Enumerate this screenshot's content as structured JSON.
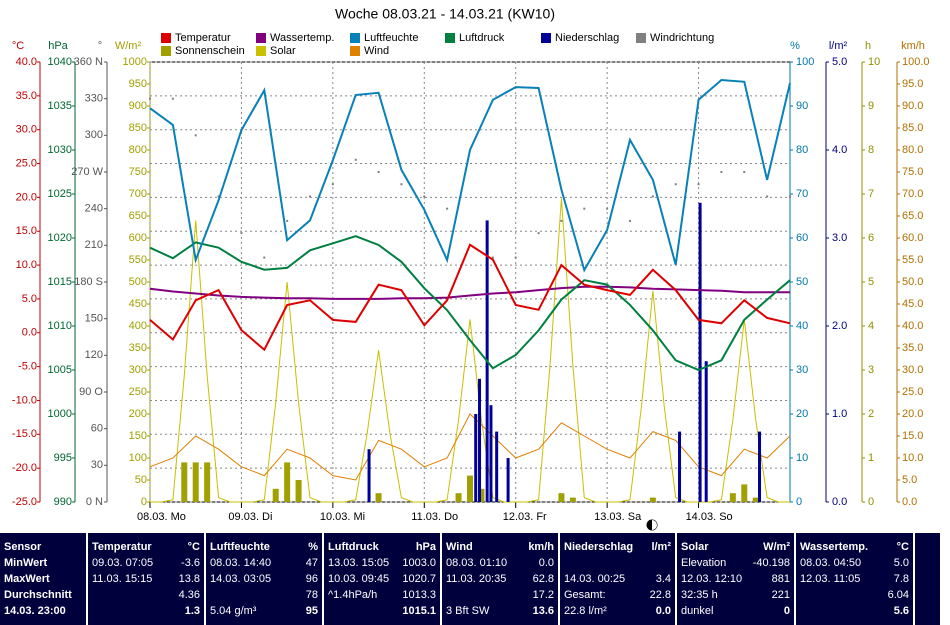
{
  "chart_data": {
    "type": "line",
    "title": "Woche 08.03.21 - 14.03.21 (KW10)",
    "xlim": [
      0,
      168
    ],
    "xticks": [
      {
        "value": 0,
        "label": "08.03. Mo"
      },
      {
        "value": 24,
        "label": "09.03. Di"
      },
      {
        "value": 48,
        "label": "10.03. Mi"
      },
      {
        "value": 72,
        "label": "11.03. Do"
      },
      {
        "value": 96,
        "label": "12.03. Fr"
      },
      {
        "value": 120,
        "label": "13.03. Sa"
      },
      {
        "value": 144,
        "label": "14.03. So"
      }
    ],
    "grid": true,
    "x": [
      0,
      6,
      12,
      18,
      24,
      30,
      36,
      42,
      48,
      54,
      60,
      66,
      72,
      78,
      84,
      90,
      96,
      102,
      108,
      114,
      120,
      126,
      132,
      138,
      144,
      150,
      156,
      162,
      168
    ],
    "axes": [
      {
        "unit": "°C",
        "color": "#c00000",
        "side": "left",
        "lim": [
          -25,
          40
        ],
        "ticks": [
          {
            "value": 40,
            "label": "40.0"
          },
          {
            "value": 35,
            "label": "35.0"
          },
          {
            "value": 30,
            "label": "30.0"
          },
          {
            "value": 25,
            "label": "25.0"
          },
          {
            "value": 20,
            "label": "20.0"
          },
          {
            "value": 15,
            "label": "15.0"
          },
          {
            "value": 10,
            "label": "10.0"
          },
          {
            "value": 5,
            "label": "5.0"
          },
          {
            "value": 0,
            "label": "0.0"
          },
          {
            "value": -5,
            "label": "-5.0"
          },
          {
            "value": -10,
            "label": "-10.0"
          },
          {
            "value": -15,
            "label": "-15.0"
          },
          {
            "value": -20,
            "label": "-20.0"
          },
          {
            "value": -25,
            "label": "-25.0"
          }
        ]
      },
      {
        "unit": "hPa",
        "color": "#006633",
        "side": "left",
        "lim": [
          990,
          1040
        ],
        "ticks": [
          1040,
          1035,
          1030,
          1025,
          1020,
          1015,
          1010,
          1005,
          1000,
          995,
          990
        ]
      },
      {
        "unit": "°",
        "color": "#555555",
        "side": "left",
        "lim": [
          0,
          360
        ],
        "ticks": [
          {
            "value": 360,
            "label": "360 N"
          },
          330,
          300,
          {
            "value": 270,
            "label": "270 W"
          },
          240,
          210,
          {
            "value": 180,
            "label": "180 S"
          },
          150,
          120,
          {
            "value": 90,
            "label": "90 O"
          },
          60,
          30,
          {
            "value": 0,
            "label": "0 N"
          }
        ]
      },
      {
        "unit": "W/m²",
        "color": "#a0a000",
        "side": "left",
        "lim": [
          0,
          1000
        ],
        "ticks": [
          1000,
          950,
          900,
          850,
          800,
          750,
          700,
          650,
          600,
          550,
          500,
          450,
          400,
          350,
          300,
          250,
          200,
          150,
          100,
          50,
          0
        ]
      },
      {
        "unit": "%",
        "color": "#0077aa",
        "side": "right",
        "lim": [
          0,
          100
        ],
        "ticks": [
          100,
          90,
          80,
          70,
          60,
          50,
          40,
          30,
          20,
          10,
          0
        ]
      },
      {
        "unit": "l/m²",
        "color": "#000080",
        "side": "right",
        "lim": [
          0,
          5
        ],
        "ticks": [
          {
            "value": 5,
            "label": "5.0"
          },
          {
            "value": 4,
            "label": "4.0"
          },
          {
            "value": 3,
            "label": "3.0"
          },
          {
            "value": 2,
            "label": "2.0"
          },
          {
            "value": 1,
            "label": "1.0"
          },
          {
            "value": 0,
            "label": "0.0"
          }
        ]
      },
      {
        "unit": "h",
        "color": "#909000",
        "side": "right",
        "lim": [
          0,
          10
        ],
        "ticks": [
          10,
          9,
          8,
          7,
          6,
          5,
          4,
          3,
          2,
          1,
          0
        ]
      },
      {
        "unit": "km/h",
        "color": "#b07000",
        "side": "right",
        "lim": [
          0,
          100
        ],
        "ticks": [
          {
            "value": 100,
            "label": "100.0"
          },
          {
            "value": 95,
            "label": "95.0"
          },
          {
            "value": 90,
            "label": "90.0"
          },
          {
            "value": 85,
            "label": "85.0"
          },
          {
            "value": 80,
            "label": "80.0"
          },
          {
            "value": 75,
            "label": "75.0"
          },
          {
            "value": 70,
            "label": "70.0"
          },
          {
            "value": 65,
            "label": "65.0"
          },
          {
            "value": 60,
            "label": "60.0"
          },
          {
            "value": 55,
            "label": "55.0"
          },
          {
            "value": 50,
            "label": "50.0"
          },
          {
            "value": 45,
            "label": "45.0"
          },
          {
            "value": 40,
            "label": "40.0"
          },
          {
            "value": 35,
            "label": "35.0"
          },
          {
            "value": 30,
            "label": "30.0"
          },
          {
            "value": 25,
            "label": "25.0"
          },
          {
            "value": 20,
            "label": "20.0"
          },
          {
            "value": 15,
            "label": "15.0"
          },
          {
            "value": 10,
            "label": "10.0"
          },
          {
            "value": 5,
            "label": "5.0"
          },
          {
            "value": 0,
            "label": "0.0"
          }
        ]
      }
    ],
    "series": [
      {
        "name": "Temperatur",
        "color": "#dd0000",
        "axis": 0,
        "kind": "line",
        "values": [
          1.9,
          -1.0,
          4.8,
          6.3,
          0.4,
          -2.5,
          4.1,
          4.8,
          1.9,
          1.6,
          7.1,
          6.3,
          1.1,
          4.8,
          13.0,
          10.8,
          4.1,
          3.4,
          10.0,
          7.1,
          6.3,
          5.6,
          9.3,
          6.3,
          1.9,
          1.4,
          4.8,
          2.2,
          1.4
        ]
      },
      {
        "name": "Wassertemp.",
        "color": "#800080",
        "axis": 0,
        "kind": "line",
        "values": [
          6.5,
          6.1,
          5.8,
          5.5,
          5.3,
          5.2,
          5.1,
          5.1,
          5.0,
          5.0,
          5.0,
          5.1,
          5.1,
          5.2,
          5.5,
          5.8,
          6.0,
          6.3,
          6.6,
          6.8,
          6.8,
          6.7,
          6.5,
          6.4,
          6.3,
          6.2,
          6.0,
          6.0,
          6.0
        ]
      },
      {
        "name": "Luftfeuchte",
        "color": "#0880b8",
        "axis": 4,
        "kind": "line",
        "values": [
          89.5,
          85.7,
          55,
          68.6,
          84.5,
          93.6,
          59.5,
          64,
          77.7,
          92.5,
          93,
          75.5,
          66.4,
          55,
          80,
          91.4,
          94.3,
          94.1,
          71,
          52.7,
          61.8,
          82.3,
          73.2,
          53.9,
          91.4,
          95.9,
          95.5,
          73.2,
          95.2
        ]
      },
      {
        "name": "Luftdruck",
        "color": "#008040",
        "axis": 1,
        "kind": "line",
        "values": [
          1018.9,
          1017.7,
          1019.5,
          1018.9,
          1017.3,
          1016.4,
          1016.6,
          1018.6,
          1019.4,
          1020.2,
          1019.2,
          1017.3,
          1014.3,
          1011.8,
          1008.4,
          1005.2,
          1006.7,
          1009.5,
          1013.0,
          1015.2,
          1014.7,
          1012.4,
          1009.5,
          1006.1,
          1005.0,
          1006.1,
          1010.7,
          1013.0,
          1015.2
        ]
      },
      {
        "name": "Niederschlag",
        "color": "#000099",
        "axis": 5,
        "kind": "bar",
        "x": [
          57.5,
          85.5,
          86.5,
          88.5,
          89.5,
          91,
          94,
          139,
          144.4,
          146,
          160
        ],
        "values": [
          0.6,
          1.0,
          1.4,
          3.2,
          1.1,
          0.8,
          0.5,
          0.8,
          3.4,
          1.6,
          0.8
        ]
      },
      {
        "name": "Windrichtung",
        "color": "#808080",
        "axis": 2,
        "kind": "dots",
        "values": [
          330,
          330,
          300,
          250,
          220,
          200,
          230,
          250,
          260,
          280,
          270,
          260,
          250,
          240,
          210,
          200,
          200,
          220,
          230,
          240,
          240,
          230,
          250,
          260,
          260,
          270,
          270,
          250,
          250
        ]
      },
      {
        "name": "Sonnenschein",
        "color": "#a0a000",
        "axis": 6,
        "kind": "bar",
        "x": [
          0,
          3,
          6,
          9,
          12,
          15,
          18,
          21,
          24,
          27,
          30,
          33,
          36,
          39,
          42,
          45,
          48,
          51,
          54,
          57,
          60,
          63,
          66,
          69,
          72,
          75,
          78,
          81,
          84,
          87,
          90,
          93,
          96,
          99,
          102,
          105,
          108,
          111,
          114,
          117,
          120,
          123,
          126,
          129,
          132,
          135,
          138,
          141,
          144,
          147,
          150,
          153,
          156,
          159,
          162,
          165,
          168
        ],
        "values": [
          0,
          0,
          0,
          0.9,
          0.9,
          0.9,
          0,
          0,
          0,
          0,
          0,
          0.3,
          0.9,
          0.5,
          0,
          0,
          0,
          0,
          0,
          0,
          0.2,
          0,
          0,
          0,
          0,
          0,
          0,
          0.2,
          0.6,
          0.3,
          0,
          0,
          0,
          0,
          0,
          0,
          0.2,
          0.1,
          0,
          0,
          0,
          0,
          0,
          0,
          0.1,
          0,
          0,
          0,
          0,
          0,
          0,
          0.2,
          0.4,
          0.1,
          0,
          0,
          0
        ]
      },
      {
        "name": "Solar",
        "color": "#c8c000",
        "axis": 3,
        "kind": "line",
        "x": [
          0,
          3,
          6,
          9,
          12,
          15,
          18,
          21,
          24,
          27,
          30,
          33,
          36,
          39,
          42,
          45,
          48,
          51,
          54,
          57,
          60,
          63,
          66,
          69,
          72,
          75,
          78,
          81,
          84,
          87,
          90,
          93,
          96,
          99,
          102,
          105,
          108,
          111,
          114,
          117,
          120,
          123,
          126,
          129,
          132,
          135,
          138,
          141,
          144,
          147,
          150,
          153,
          156,
          159,
          162,
          165,
          168
        ],
        "values": [
          0,
          0,
          5,
          288,
          640,
          288,
          10,
          0,
          0,
          0,
          5,
          225,
          500,
          225,
          10,
          0,
          0,
          0,
          5,
          155,
          345,
          155,
          10,
          0,
          0,
          0,
          5,
          187,
          415,
          187,
          10,
          0,
          0,
          0,
          5,
          310,
          690,
          310,
          10,
          0,
          0,
          0,
          5,
          216,
          480,
          216,
          10,
          0,
          0,
          0,
          5,
          187,
          415,
          187,
          10,
          0,
          0
        ]
      },
      {
        "name": "Wind",
        "color": "#e08000",
        "axis": 7,
        "kind": "line",
        "values": [
          8,
          10,
          15,
          12,
          8,
          6,
          12,
          10,
          6,
          5,
          14,
          12,
          8,
          10,
          20,
          15,
          10,
          12,
          18,
          15,
          12,
          10,
          16,
          14,
          8,
          6,
          12,
          10,
          15
        ]
      }
    ]
  },
  "table": {
    "columns": [
      {
        "header": "Sensor",
        "rows": [
          {
            "value": "MinWert"
          },
          {
            "value": "MaxWert"
          },
          {
            "value": "Durchschnitt"
          },
          {
            "value": "14.03. 23:00"
          }
        ]
      },
      {
        "header": "Temperatur",
        "unit": "°C",
        "rows": [
          {
            "time": "09.03. 07:05",
            "value": "-3.6"
          },
          {
            "time": "11.03. 15:15",
            "value": "13.8"
          },
          {
            "value": "4.36"
          },
          {
            "value": "1.3"
          }
        ]
      },
      {
        "header": "Luftfeuchte",
        "unit": "%",
        "rows": [
          {
            "time": "08.03. 14:40",
            "value": "47"
          },
          {
            "time": "14.03. 03:05",
            "value": "96"
          },
          {
            "value": "78"
          },
          {
            "time": "5.04 g/m³",
            "value": "95"
          }
        ]
      },
      {
        "header": "Luftdruck",
        "unit": "hPa",
        "rows": [
          {
            "time": "13.03. 15:05",
            "value": "1003.0"
          },
          {
            "time": "10.03. 09:45",
            "value": "1020.7"
          },
          {
            "time": "^1.4hPa/h",
            "value": "1013.3"
          },
          {
            "value": "1015.1"
          }
        ]
      },
      {
        "header": "Wind",
        "unit": "km/h",
        "rows": [
          {
            "time": "08.03. 01:10",
            "value": "0.0"
          },
          {
            "time": "11.03. 20:35",
            "value": "62.8"
          },
          {
            "value": "17.2"
          },
          {
            "time": "3 Bft SW",
            "value": "13.6"
          }
        ]
      },
      {
        "header": "Niederschlag",
        "unit": "l/m²",
        "rows": [
          null,
          {
            "time": "14.03. 00:25",
            "value": "3.4"
          },
          {
            "time": "Gesamt:",
            "value": "22.8"
          },
          {
            "time": "22.8 l/m²",
            "value": "0.0"
          }
        ]
      },
      {
        "header": "Solar",
        "unit": "W/m²",
        "rows": [
          {
            "time": "Elevation",
            "value": "-40.198"
          },
          {
            "time": "12.03. 12:10",
            "value": "881"
          },
          {
            "time": "32:35 h",
            "value": "221"
          },
          {
            "time": "dunkel",
            "value": "0"
          }
        ]
      },
      {
        "header": "Wassertemp.",
        "unit": "°C",
        "rows": [
          {
            "time": "08.03. 04:50",
            "value": "5.0"
          },
          {
            "time": "12.03. 11:05",
            "value": "7.8"
          },
          {
            "value": "6.04"
          },
          {
            "value": "5.6"
          }
        ]
      }
    ]
  }
}
